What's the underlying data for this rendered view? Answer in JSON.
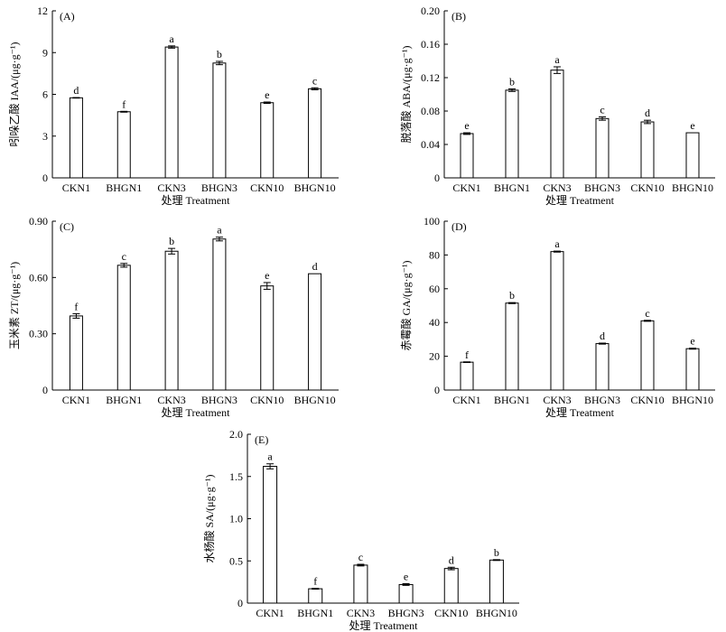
{
  "xlabel": "处理 Treatment",
  "chart_data": [
    {
      "type": "bar",
      "panel_label": "(A)",
      "ylabel": "吲哚乙酸 IAA/(μg·g⁻¹)",
      "categories": [
        "CKN1",
        "BHGN1",
        "CKN3",
        "BHGN3",
        "CKN10",
        "BHGN10"
      ],
      "values": [
        5.75,
        4.75,
        9.4,
        8.25,
        5.4,
        6.4
      ],
      "errors": [
        0.02,
        0.03,
        0.08,
        0.12,
        0.05,
        0.07
      ],
      "letters": [
        "d",
        "f",
        "a",
        "b",
        "e",
        "c"
      ],
      "ylim": [
        0,
        12
      ],
      "yticks": [
        0,
        3,
        6,
        9,
        12
      ],
      "yticklabels": [
        "0",
        "3",
        "6",
        "9",
        "12"
      ]
    },
    {
      "type": "bar",
      "panel_label": "(B)",
      "ylabel": "脱落酸 ABA/(μg·g⁻¹)",
      "categories": [
        "CKN1",
        "BHGN1",
        "CKN3",
        "BHGN3",
        "CKN10",
        "BHGN10"
      ],
      "values": [
        0.053,
        0.105,
        0.129,
        0.071,
        0.067,
        0.054
      ],
      "errors": [
        0.001,
        0.0015,
        0.004,
        0.002,
        0.002,
        0.0
      ],
      "letters": [
        "e",
        "b",
        "a",
        "c",
        "d",
        "e"
      ],
      "ylim": [
        0,
        0.2
      ],
      "yticks": [
        0,
        0.04,
        0.08,
        0.12,
        0.16,
        0.2
      ],
      "yticklabels": [
        "0",
        "0.04",
        "0.08",
        "0.12",
        "0.16",
        "0.20"
      ]
    },
    {
      "type": "bar",
      "panel_label": "(C)",
      "ylabel": "玉米素 ZT/(μg·g⁻¹)",
      "categories": [
        "CKN1",
        "BHGN1",
        "CKN3",
        "BHGN3",
        "CKN10",
        "BHGN10"
      ],
      "values": [
        0.395,
        0.665,
        0.74,
        0.805,
        0.555,
        0.62
      ],
      "errors": [
        0.012,
        0.01,
        0.015,
        0.01,
        0.018,
        0.0
      ],
      "letters": [
        "f",
        "c",
        "b",
        "a",
        "e",
        "d"
      ],
      "ylim": [
        0,
        0.9
      ],
      "yticks": [
        0,
        0.3,
        0.6,
        0.9
      ],
      "yticklabels": [
        "0",
        "0.30",
        "0.60",
        "0.90"
      ]
    },
    {
      "type": "bar",
      "panel_label": "(D)",
      "ylabel": "赤霉酸 GA/(μg·g⁻¹)",
      "categories": [
        "CKN1",
        "BHGN1",
        "CKN3",
        "BHGN3",
        "CKN10",
        "BHGN10"
      ],
      "values": [
        16.5,
        51.5,
        82,
        27.5,
        41,
        24.5
      ],
      "errors": [
        0.2,
        0.3,
        0.3,
        0.3,
        0.3,
        0.3
      ],
      "letters": [
        "f",
        "b",
        "a",
        "d",
        "c",
        "e"
      ],
      "ylim": [
        0,
        100
      ],
      "yticks": [
        0,
        20,
        40,
        60,
        80,
        100
      ],
      "yticklabels": [
        "0",
        "20",
        "40",
        "60",
        "80",
        "100"
      ]
    },
    {
      "type": "bar",
      "panel_label": "(E)",
      "ylabel": "水杨酸 SA/(μg·g⁻¹)",
      "categories": [
        "CKN1",
        "BHGN1",
        "CKN3",
        "BHGN3",
        "CKN10",
        "BHGN10"
      ],
      "values": [
        1.62,
        0.17,
        0.45,
        0.22,
        0.41,
        0.51
      ],
      "errors": [
        0.03,
        0.005,
        0.01,
        0.01,
        0.015,
        0.005
      ],
      "letters": [
        "a",
        "f",
        "c",
        "e",
        "d",
        "b"
      ],
      "ylim": [
        0,
        2
      ],
      "yticks": [
        0,
        0.5,
        1,
        1.5,
        2
      ],
      "yticklabels": [
        "0",
        "0.5",
        "1.0",
        "1.5",
        "2.0"
      ]
    }
  ]
}
